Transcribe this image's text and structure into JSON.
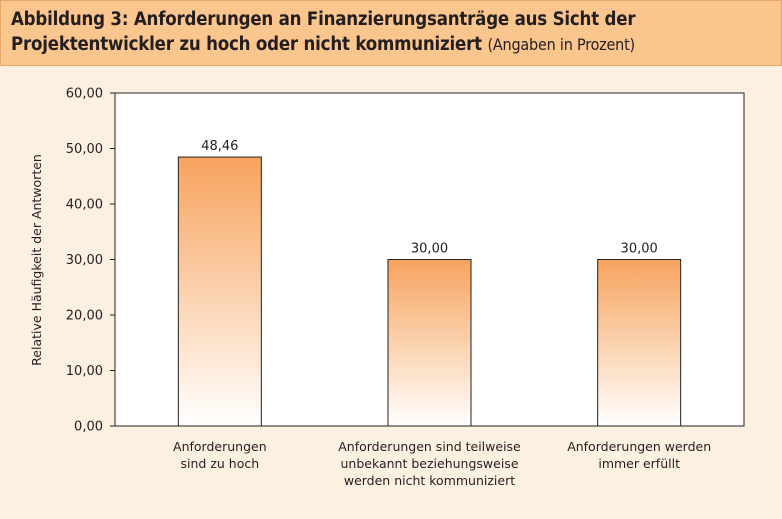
{
  "header": {
    "title": "Abbildung 3: Anforderungen an Finanzierungsanträge aus Sicht der Projektentwickler zu hoch oder nicht kommuniziert",
    "subtitle": "(Angaben in Prozent)"
  },
  "colors": {
    "header_bg": "#fbc58e",
    "page_bg": "#fdf0e1",
    "bar_top": "#f7a35e",
    "bar_bottom": "#ffffff"
  },
  "chart_data": {
    "type": "bar",
    "categories": [
      [
        "Anforderungen",
        "sind zu hoch"
      ],
      [
        "Anforderungen sind teilweise",
        "unbekannt beziehungsweise",
        "werden nicht kommuniziert"
      ],
      [
        "Anforderungen werden",
        "immer erfüllt"
      ]
    ],
    "values": [
      48.46,
      30.0,
      30.0
    ],
    "data_labels": [
      "48,46",
      "30,00",
      "30,00"
    ],
    "title": "",
    "xlabel": "",
    "ylabel": "Relative Häufigkeit der Antworten",
    "ylim": [
      0,
      60
    ],
    "yticks": [
      "0,00",
      "10,00",
      "20,00",
      "30,00",
      "40,00",
      "50,00",
      "60,00"
    ],
    "grid": false,
    "legend": "none"
  }
}
